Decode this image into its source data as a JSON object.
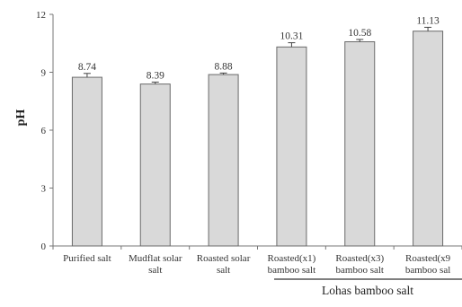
{
  "chart_data": {
    "type": "bar",
    "title": "",
    "xlabel": "",
    "ylabel": "pH",
    "ylim": [
      0,
      12
    ],
    "yticks": [
      "0",
      "3",
      "6",
      "9",
      "12"
    ],
    "grid": false,
    "categories": [
      [
        "Purified salt"
      ],
      [
        "Mudflat solar",
        "salt"
      ],
      [
        "Roasted  solar",
        "salt"
      ],
      [
        "Roasted(x1)",
        "bamboo salt"
      ],
      [
        "Roasted(x3)",
        "bamboo salt"
      ],
      [
        "Roasted(x9",
        "bamboo sal"
      ]
    ],
    "values": [
      8.74,
      8.39,
      8.88,
      10.31,
      10.58,
      11.13
    ],
    "value_labels": [
      "8.74",
      "8.39",
      "8.88",
      "10.31",
      "10.58",
      "11.13"
    ],
    "error": [
      0.2,
      0.1,
      0.08,
      0.22,
      0.12,
      0.2
    ],
    "group_label": "Lohas  bamboo salt",
    "colors": {
      "bar_fill": "#d9d9d9",
      "bar_stroke": "#6a6a6a",
      "axis": "#777777",
      "text": "#333333"
    }
  }
}
